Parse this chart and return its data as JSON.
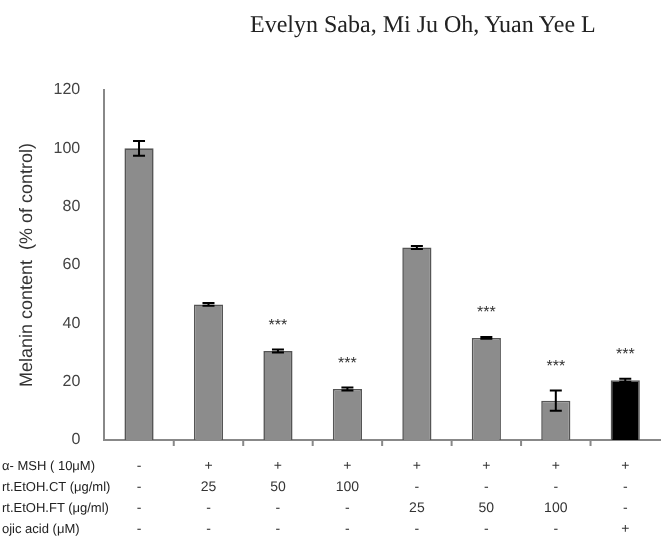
{
  "chart_data": {
    "type": "bar",
    "ylabel": "Melanin content  (% of control)",
    "categories": [
      "-\n-\n-\n-",
      "+\n25\n-\n-",
      "+\n50\n-\n-",
      "+\n100\n-\n-",
      "+\n-\n25\n-",
      "+\n-\n50\n-",
      "+\n-\n100\n-",
      "+\n-\n-\n+"
    ],
    "values": [
      100,
      46.5,
      30.5,
      17.5,
      66,
      35,
      13.5,
      20.5
    ],
    "errors": [
      2.5,
      0.5,
      0.5,
      0.5,
      0.5,
      0.3,
      3.5,
      0.5
    ],
    "colors": [
      "#8c8c8c",
      "#8c8c8c",
      "#8c8c8c",
      "#8c8c8c",
      "#8c8c8c",
      "#8c8c8c",
      "#8c8c8c",
      "#000000"
    ],
    "value_labels": [
      null,
      null,
      "***",
      "***",
      null,
      "***",
      "***",
      "***"
    ],
    "ylim": [
      0,
      120
    ],
    "yticks": [
      0,
      20,
      40,
      60,
      80,
      100,
      120
    ],
    "grid": false,
    "legend": false,
    "annotations": [
      "Evelyn Saba, Mi Ju Oh, Yuan Yee L",
      "α- MSH ( 10μM)",
      "rt.EtOH.CT (μg/ml)",
      "rt.EtOH.FT (μg/ml)",
      "ojic acid (μM)"
    ]
  }
}
